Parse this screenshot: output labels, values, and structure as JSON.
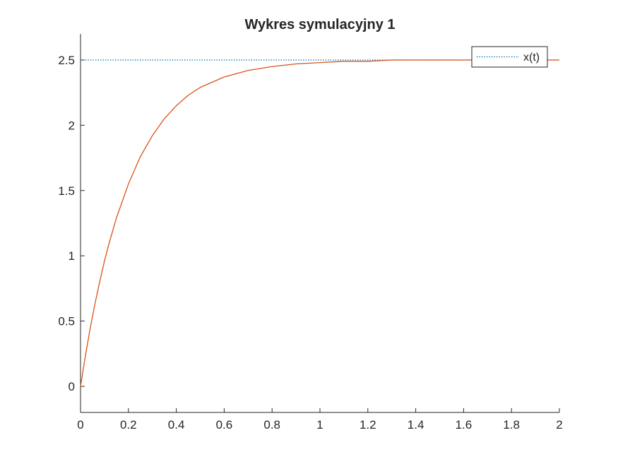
{
  "chart_data": {
    "type": "line",
    "title": "Wykres symulacyjny 1",
    "xlabel": "",
    "ylabel": "",
    "xlim": [
      0,
      2
    ],
    "ylim": [
      -0.2,
      2.7
    ],
    "x_ticks": [
      "0",
      "0.2",
      "0.4",
      "0.6",
      "0.8",
      "1",
      "1.2",
      "1.4",
      "1.6",
      "1.8",
      "2"
    ],
    "y_ticks": [
      "0",
      "0.5",
      "1",
      "1.5",
      "2",
      "2.5"
    ],
    "grid": false,
    "legend_position": "top-right",
    "series": [
      {
        "name": "x(t)",
        "style": "dotted",
        "color": "#0072bd",
        "x": [
          0,
          2
        ],
        "y": [
          2.5,
          2.5
        ]
      },
      {
        "style": "solid",
        "color": "#d95319",
        "x": [
          0,
          0.02,
          0.04,
          0.06,
          0.08,
          0.1,
          0.12,
          0.15,
          0.2,
          0.25,
          0.3,
          0.35,
          0.4,
          0.45,
          0.5,
          0.6,
          0.7,
          0.8,
          0.9,
          1.0,
          1.1,
          1.2,
          1.3,
          1.4,
          1.5,
          1.6,
          1.7,
          1.8,
          1.9,
          2.0
        ],
        "y": [
          0,
          0.23,
          0.44,
          0.63,
          0.8,
          0.96,
          1.1,
          1.29,
          1.55,
          1.76,
          1.92,
          2.05,
          2.15,
          2.23,
          2.29,
          2.37,
          2.42,
          2.45,
          2.47,
          2.48,
          2.49,
          2.49,
          2.5,
          2.5,
          2.5,
          2.5,
          2.5,
          2.5,
          2.5,
          2.5
        ]
      }
    ]
  }
}
